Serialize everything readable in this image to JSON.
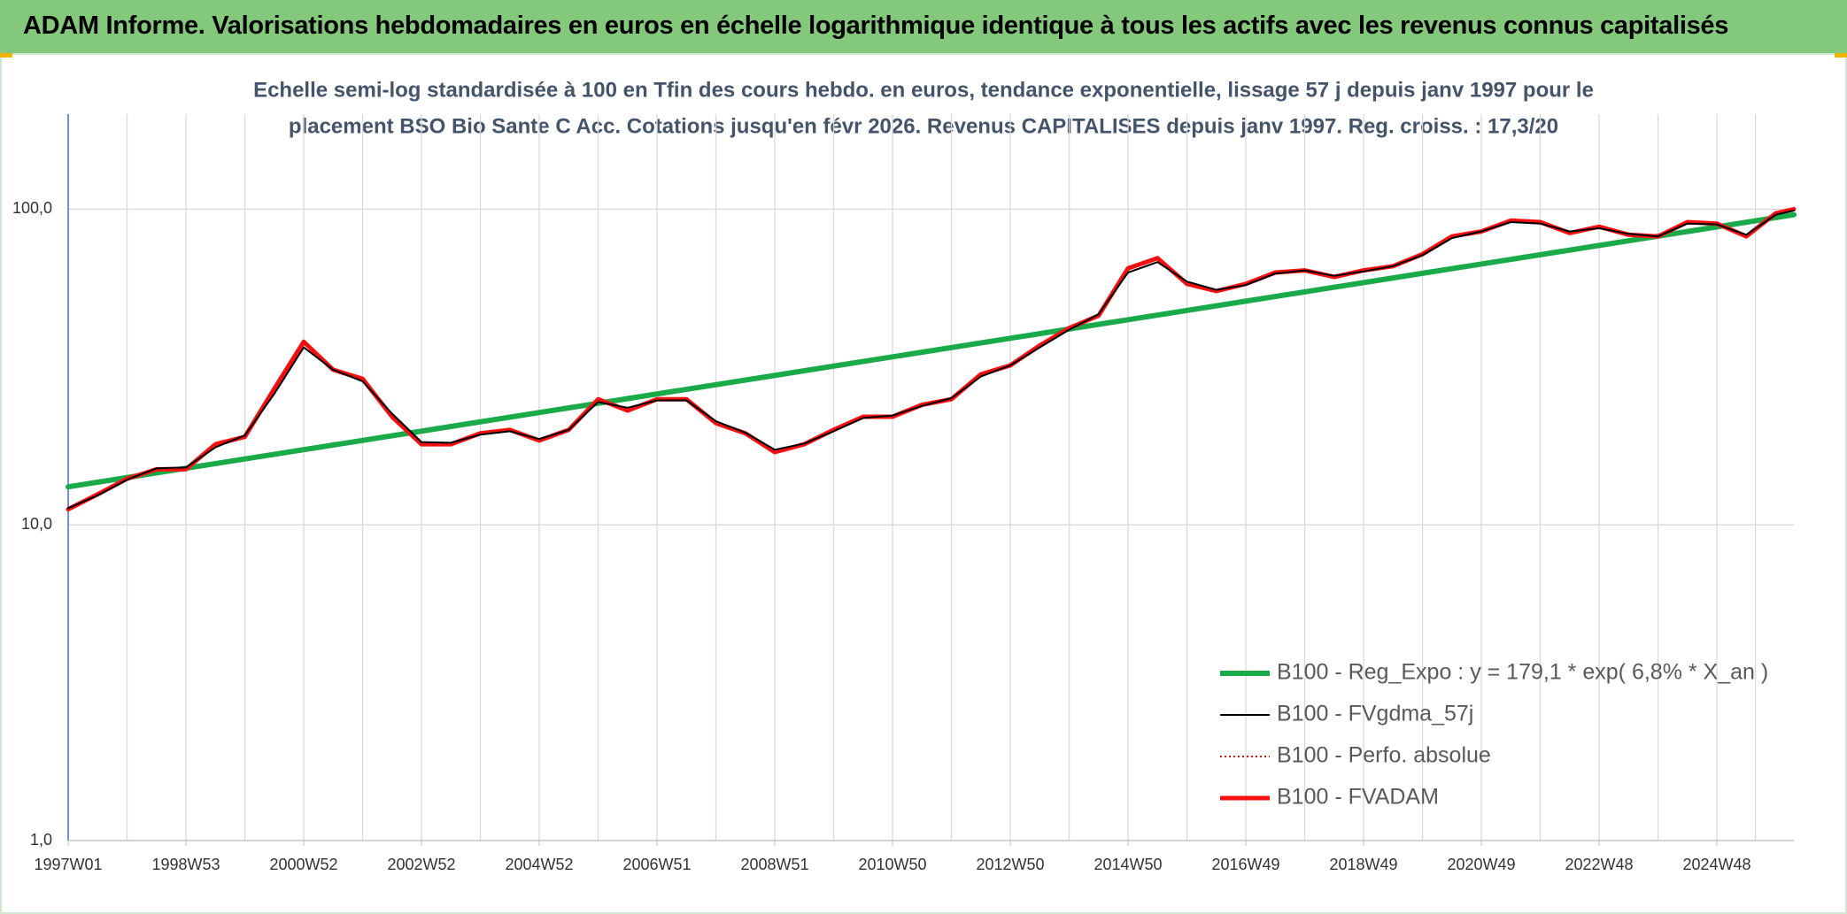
{
  "header": {
    "title": "ADAM Informe. Valorisations hebdomadaires en euros en échelle logarithmique identique à tous les actifs avec les revenus connus capitalisés"
  },
  "chart_data": {
    "type": "line",
    "title": [
      "Echelle semi-log standardisée à 100 en Tfin des cours hebdo. en euros, tendance exponentielle, lissage 57 j depuis janv 1997 pour le",
      "placement BSO Bio Sante C Acc. Cotations jusqu'en févr 2026. Revenus CAPITALISES depuis janv 1997. Reg. croiss. : 17,3/20"
    ],
    "log_y": true,
    "grid": true,
    "legend": "lower right",
    "xlim": [
      0,
      1524
    ],
    "xticks": [
      {
        "value": 0,
        "label": "1997W01"
      },
      {
        "value": 104,
        "label": "1998W53"
      },
      {
        "value": 208,
        "label": "2000W52"
      },
      {
        "value": 312,
        "label": "2002W52"
      },
      {
        "value": 416,
        "label": "2004W52"
      },
      {
        "value": 520,
        "label": "2006W51"
      },
      {
        "value": 624,
        "label": "2008W51"
      },
      {
        "value": 728,
        "label": "2010W50"
      },
      {
        "value": 832,
        "label": "2012W50"
      },
      {
        "value": 936,
        "label": "2014W50"
      },
      {
        "value": 1040,
        "label": "2016W49"
      },
      {
        "value": 1144,
        "label": "2018W49"
      },
      {
        "value": 1248,
        "label": "2020W49"
      },
      {
        "value": 1352,
        "label": "2022W48"
      },
      {
        "value": 1456,
        "label": "2024W48"
      }
    ],
    "ylim": [
      1,
      200
    ],
    "yticks": [
      {
        "value": 1,
        "label": "1,0"
      },
      {
        "value": 10,
        "label": "10,0"
      },
      {
        "value": 100,
        "label": "100,0"
      }
    ],
    "series": [
      {
        "name": "B100 - Reg_Expo : y = 179,1 * exp( 6,8% *  X_an )",
        "color": "#1aaa4a",
        "style": "thick",
        "x": [
          0,
          1524
        ],
        "values": [
          13.2,
          96
        ]
      },
      {
        "name": "B100 - FVgdma_57j",
        "color": "#000000",
        "style": "thin",
        "x": [
          0,
          26,
          52,
          78,
          104,
          130,
          156,
          182,
          208,
          234,
          260,
          286,
          312,
          338,
          364,
          390,
          416,
          442,
          468,
          494,
          520,
          546,
          572,
          598,
          624,
          650,
          676,
          702,
          728,
          754,
          780,
          806,
          832,
          858,
          884,
          910,
          936,
          962,
          988,
          1014,
          1040,
          1066,
          1092,
          1118,
          1144,
          1170,
          1196,
          1222,
          1248,
          1274,
          1300,
          1326,
          1352,
          1378,
          1404,
          1430,
          1456,
          1482,
          1508,
          1524
        ],
        "values": [
          11.3,
          12.4,
          13.9,
          15.1,
          15.2,
          17.6,
          19.2,
          26,
          36.5,
          31,
          28.5,
          22.5,
          18.3,
          18.2,
          19.3,
          19.8,
          18.7,
          20,
          24.5,
          23.5,
          24.8,
          24.8,
          21.3,
          19.6,
          17.3,
          18.1,
          19.8,
          21.8,
          22.2,
          23.8,
          25.2,
          29.5,
          32,
          36.5,
          41.5,
          46.5,
          63,
          68,
          59,
          55.5,
          57.5,
          62.5,
          64,
          61.5,
          63.5,
          66,
          71.5,
          81,
          85,
          91,
          90,
          85,
          87,
          83.5,
          82,
          90,
          89.5,
          83,
          96,
          99
        ]
      },
      {
        "name": "B100 - Perfo. absolue",
        "color": "#e01010",
        "style": "dotted",
        "x": [
          0,
          26,
          52,
          78,
          104,
          130,
          156,
          182,
          208,
          234,
          260,
          286,
          312,
          338,
          364,
          390,
          416,
          442,
          468,
          494,
          520,
          546,
          572,
          598,
          624,
          650,
          676,
          702,
          728,
          754,
          780,
          806,
          832,
          858,
          884,
          910,
          936,
          962,
          988,
          1014,
          1040,
          1066,
          1092,
          1118,
          1144,
          1170,
          1196,
          1222,
          1248,
          1274,
          1300,
          1326,
          1352,
          1378,
          1404,
          1430,
          1456,
          1482,
          1508,
          1524
        ],
        "values": [
          11.2,
          12.5,
          14,
          15,
          15,
          18,
          19,
          27,
          38,
          31,
          29,
          22,
          18,
          18,
          19.5,
          20,
          18.5,
          20,
          25,
          23,
          25,
          25,
          21,
          19.5,
          17,
          18,
          20,
          22,
          22,
          24,
          25,
          30,
          32,
          37,
          42,
          46,
          65,
          70,
          58,
          55,
          58,
          63,
          64,
          61,
          64,
          66,
          72,
          82,
          85,
          92,
          91,
          84,
          88,
          83,
          82,
          91,
          90,
          82,
          97,
          100
        ]
      },
      {
        "name": "B100 - FVADAM",
        "color": "#ff1010",
        "style": "thick",
        "x": [
          0,
          26,
          52,
          78,
          104,
          130,
          156,
          182,
          208,
          234,
          260,
          286,
          312,
          338,
          364,
          390,
          416,
          442,
          468,
          494,
          520,
          546,
          572,
          598,
          624,
          650,
          676,
          702,
          728,
          754,
          780,
          806,
          832,
          858,
          884,
          910,
          936,
          962,
          988,
          1014,
          1040,
          1066,
          1092,
          1118,
          1144,
          1170,
          1196,
          1222,
          1248,
          1274,
          1300,
          1326,
          1352,
          1378,
          1404,
          1430,
          1456,
          1482,
          1508,
          1524
        ],
        "values": [
          11.2,
          12.5,
          14,
          15,
          15,
          18,
          19,
          27,
          38,
          31,
          29,
          22,
          18,
          18,
          19.5,
          20,
          18.5,
          20,
          25,
          23,
          25,
          25,
          21,
          19.5,
          17,
          18,
          20,
          22,
          22,
          24,
          25,
          30,
          32,
          37,
          42,
          46,
          65,
          70,
          58,
          55,
          58,
          63,
          64,
          61,
          64,
          66,
          72,
          82,
          85,
          92,
          91,
          84,
          88,
          83,
          82,
          91,
          90,
          82,
          97,
          100
        ]
      }
    ]
  }
}
